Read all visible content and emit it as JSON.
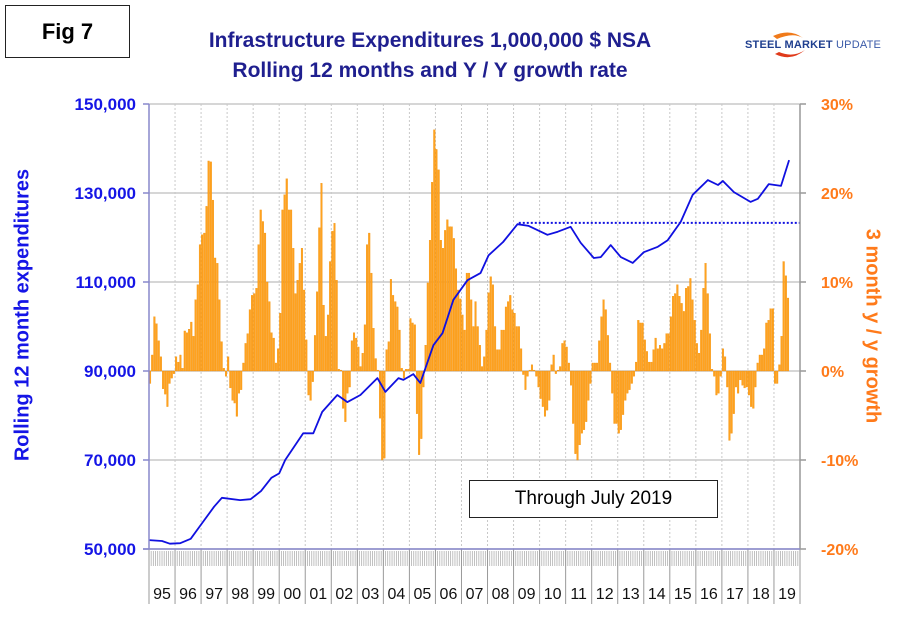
{
  "figure_label": "Fig 7",
  "logo": {
    "text_bold": "STEEL MARKET",
    "text_light": "UPDATE"
  },
  "colors": {
    "line": "#1010e0",
    "bars": "#ffa21f",
    "bar_edge": "#f08c00",
    "left_axis_text": "#1515e6",
    "right_axis_text": "#ff7a1a",
    "title": "#1f1f8f"
  },
  "chart_data": {
    "type": "bar+line",
    "title": [
      "Infrastructure Expenditures 1,000,000 $ NSA",
      "Rolling 12 months and Y / Y growth rate"
    ],
    "annotation": "Through July 2019",
    "ylabel_left": "Rolling 12 month expenditures",
    "ylabel_right": "3 month y / y growth",
    "ylim_left": [
      50000,
      150000
    ],
    "yticks_left": [
      "50,000",
      "70,000",
      "90,000",
      "110,000",
      "130,000",
      "150,000"
    ],
    "ylim_right": [
      -20,
      30
    ],
    "yticks_right": [
      "-20%",
      "-10%",
      "0%",
      "10%",
      "20%",
      "30%"
    ],
    "xlim": [
      1995,
      2020
    ],
    "xtick_labels": [
      "95",
      "96",
      "97",
      "98",
      "99",
      "00",
      "01",
      "02",
      "03",
      "04",
      "05",
      "06",
      "07",
      "08",
      "09",
      "10",
      "11",
      "12",
      "13",
      "14",
      "15",
      "16",
      "17",
      "18",
      "19"
    ],
    "grid": "horizontal solid at left-axis ticks, vertical dotted at year boundaries",
    "reference_line": {
      "value": 123300,
      "from": 2009.2,
      "to": 2020,
      "style": "dotted"
    },
    "line_series": {
      "axis": "left",
      "points": [
        [
          1995.0,
          52000
        ],
        [
          1995.5,
          51800
        ],
        [
          1995.8,
          51200
        ],
        [
          1996.2,
          51300
        ],
        [
          1996.6,
          52300
        ],
        [
          1997.0,
          55500
        ],
        [
          1997.5,
          59500
        ],
        [
          1997.8,
          61500
        ],
        [
          1998.5,
          61000
        ],
        [
          1998.9,
          61200
        ],
        [
          1999.3,
          63000
        ],
        [
          1999.7,
          66000
        ],
        [
          2000.0,
          67000
        ],
        [
          2000.23,
          70000
        ],
        [
          2000.92,
          76000
        ],
        [
          2001.31,
          76000
        ],
        [
          2001.65,
          80800
        ],
        [
          2002.23,
          84600
        ],
        [
          2002.62,
          83000
        ],
        [
          2003.12,
          84600
        ],
        [
          2003.77,
          88400
        ],
        [
          2004.08,
          85300
        ],
        [
          2004.58,
          88400
        ],
        [
          2004.77,
          88000
        ],
        [
          2005.15,
          89300
        ],
        [
          2005.42,
          87300
        ],
        [
          2005.92,
          95800
        ],
        [
          2006.27,
          98500
        ],
        [
          2006.69,
          106000
        ],
        [
          2007.23,
          110400
        ],
        [
          2007.73,
          112000
        ],
        [
          2008.04,
          116000
        ],
        [
          2008.6,
          119000
        ],
        [
          2009.15,
          123000
        ],
        [
          2009.58,
          122600
        ],
        [
          2010.3,
          120600
        ],
        [
          2010.7,
          121300
        ],
        [
          2011.19,
          122400
        ],
        [
          2011.58,
          118800
        ],
        [
          2012.08,
          115400
        ],
        [
          2012.35,
          115600
        ],
        [
          2012.73,
          118300
        ],
        [
          2013.12,
          115600
        ],
        [
          2013.58,
          114300
        ],
        [
          2014.0,
          116700
        ],
        [
          2014.54,
          117900
        ],
        [
          2014.92,
          119400
        ],
        [
          2015.42,
          123500
        ],
        [
          2015.88,
          129600
        ],
        [
          2016.46,
          132900
        ],
        [
          2016.85,
          131800
        ],
        [
          2017.04,
          132700
        ],
        [
          2017.46,
          130200
        ],
        [
          2018.1,
          128000
        ],
        [
          2018.38,
          128700
        ],
        [
          2018.8,
          132000
        ],
        [
          2019.27,
          131600
        ],
        [
          2019.58,
          137400
        ]
      ]
    },
    "bar_series": {
      "axis": "right",
      "start": "1995-01",
      "frequency": "monthly",
      "values": [
        -1.4,
        1.8,
        6.1,
        5.3,
        3.4,
        1.6,
        -2.0,
        -2.6,
        -4.0,
        -1.4,
        -0.8,
        -0.3,
        1.6,
        1.0,
        1.8,
        0.3,
        4.5,
        4.3,
        4.7,
        5.5,
        3.9,
        8.0,
        9.7,
        14.2,
        15.3,
        15.5,
        18.5,
        23.6,
        23.5,
        19.2,
        12.7,
        12.1,
        8.0,
        3.3,
        0.3,
        -0.6,
        1.6,
        -1.9,
        -3.3,
        -3.6,
        -5.1,
        -2.5,
        -2.1,
        0.9,
        3.1,
        4.2,
        6.9,
        8.5,
        8.7,
        9.3,
        14.2,
        18.1,
        16.8,
        15.5,
        10.0,
        7.8,
        4.3,
        3.7,
        0.9,
        2.5,
        6.5,
        18.1,
        19.8,
        21.6,
        18.1,
        18.1,
        13.8,
        8.7,
        10.2,
        12.1,
        13.8,
        9.1,
        3.5,
        -2.7,
        -3.3,
        -1.2,
        4.0,
        8.9,
        16.1,
        21.1,
        7.4,
        3.9,
        6.3,
        12.3,
        15.7,
        16.6,
        10.2,
        0.2,
        0.1,
        -4.2,
        -5.7,
        -2.5,
        -1.8,
        3.4,
        4.3,
        3.7,
        2.7,
        0.5,
        2.0,
        5.2,
        14.2,
        15.5,
        11.0,
        4.8,
        1.4,
        0.1,
        -5.3,
        -10.0,
        -9.8,
        2.4,
        3.3,
        10.3,
        8.5,
        7.8,
        7.2,
        4.6,
        0.3,
        -0.8,
        0.2,
        0.2,
        5.9,
        5.4,
        5.2,
        -4.8,
        -9.4,
        -7.6,
        -1.8,
        2.9,
        9.9,
        14.7,
        21.2,
        27.1,
        24.9,
        22.6,
        14.7,
        13.8,
        15.8,
        17.0,
        16.2,
        16.2,
        14.9,
        11.5,
        9.1,
        8.1,
        6.3,
        4.6,
        11.0,
        11.0,
        8.0,
        5.0,
        7.8,
        5.0,
        2.9,
        0.5,
        1.6,
        4.6,
        8.8,
        10.6,
        9.7,
        5.0,
        2.4,
        2.4,
        4.6,
        4.6,
        7.2,
        7.8,
        8.5,
        6.9,
        6.5,
        5.0,
        5.0,
        2.5,
        -0.4,
        -2.1,
        -0.6,
        0.1,
        0.7,
        0.1,
        -0.6,
        -1.8,
        -3.1,
        -4.0,
        -5.1,
        -4.4,
        -3.3,
        0.7,
        1.8,
        -0.3,
        0.1,
        0.5,
        3.1,
        3.4,
        2.7,
        0.9,
        -1.6,
        -5.9,
        -9.3,
        -10.0,
        -8.3,
        -7.0,
        -6.6,
        -5.7,
        -3.3,
        -1.4,
        0.9,
        0.9,
        0.9,
        3.4,
        6.1,
        8.0,
        6.9,
        4.0,
        0.9,
        -2.5,
        -5.9,
        -5.9,
        -7.0,
        -6.6,
        -4.9,
        -3.3,
        -2.5,
        -2.1,
        -1.4,
        -0.6,
        1.0,
        5.7,
        5.4,
        5.4,
        3.5,
        2.2,
        1.0,
        1.0,
        2.4,
        3.7,
        2.5,
        2.9,
        2.5,
        3.1,
        4.2,
        4.2,
        6.1,
        8.4,
        8.7,
        9.7,
        8.4,
        7.6,
        6.7,
        9.3,
        9.5,
        10.4,
        8.0,
        5.7,
        3.1,
        2.0,
        4.6,
        9.3,
        12.1,
        8.7,
        4.2,
        0.2,
        -0.6,
        -2.7,
        -2.5,
        -0.6,
        2.5,
        1.6,
        -1.8,
        -7.8,
        -7.0,
        -4.8,
        -1.8,
        -2.5,
        -1.0,
        -1.6,
        -1.9,
        -1.8,
        -2.7,
        -4.0,
        -4.2,
        -1.8,
        0.9,
        1.8,
        1.8,
        2.5,
        5.4,
        5.7,
        7.0,
        7.0,
        -1.4,
        -1.4,
        0.7,
        3.9,
        12.3,
        10.7,
        8.2
      ]
    }
  }
}
